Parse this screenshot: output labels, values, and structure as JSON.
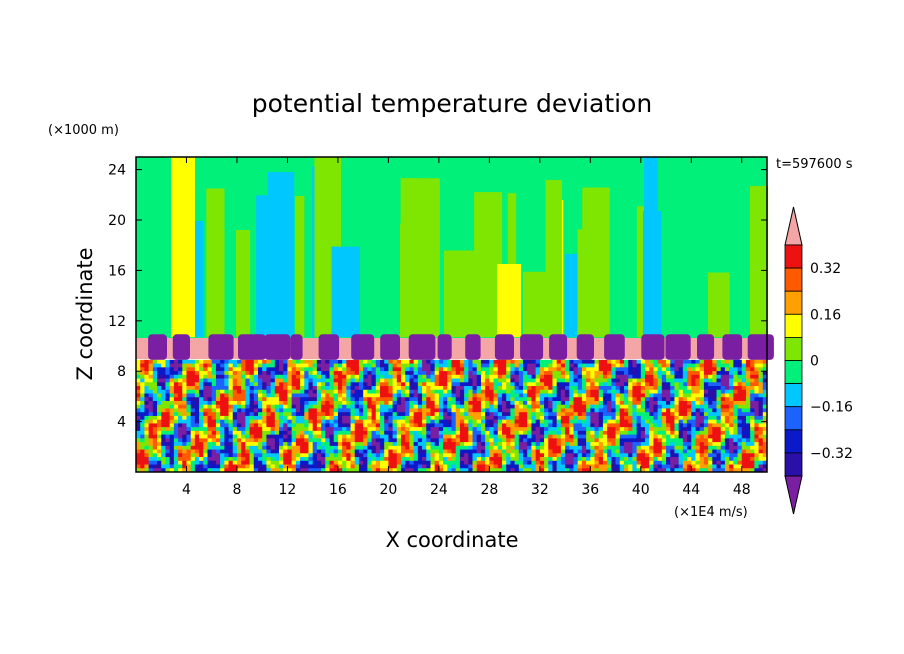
{
  "chart_data": {
    "type": "heatmap",
    "title": "potential temperature deviation",
    "xlabel": "X coordinate",
    "ylabel": "Z coordinate",
    "x_unit": "(×1E4 m/s)",
    "y_unit": "(×1000 m)",
    "time_label": "t=597600 s",
    "xlim": [
      0,
      50
    ],
    "ylim": [
      0,
      25
    ],
    "x_ticks": [
      4,
      8,
      12,
      16,
      20,
      24,
      28,
      32,
      36,
      40,
      44,
      48
    ],
    "y_ticks": [
      4,
      8,
      12,
      16,
      20,
      24
    ],
    "colorbar": {
      "levels": [
        -0.48,
        -0.4,
        -0.32,
        -0.24,
        -0.16,
        -0.08,
        0,
        0.08,
        0.16,
        0.24,
        0.32,
        0.4
      ],
      "labeled_ticks": [
        "0.32",
        "0.16",
        "0",
        "−0.16",
        "−0.32"
      ],
      "colors": [
        "#7b1fa2",
        "#2a0fa8",
        "#0b19c8",
        "#1b62ff",
        "#00c8ff",
        "#00f07a",
        "#7ee600",
        "#ffff00",
        "#ffa000",
        "#ff5a00",
        "#ee1111",
        "#f4a5a5"
      ],
      "extend": "both"
    },
    "regions": {
      "upper_layer": {
        "z_range": [
          10.7,
          25
        ],
        "dominant_values": [
          0,
          0.08
        ],
        "description_levels": "mostly 0 to 0.08 with vertical streaks"
      },
      "inversion_band": {
        "z_range": [
          8.9,
          10.7
        ],
        "value": 0.44
      },
      "mixed_layer": {
        "z_range": [
          0,
          8.9
        ],
        "value_range": [
          -0.48,
          0.4
        ]
      }
    }
  }
}
